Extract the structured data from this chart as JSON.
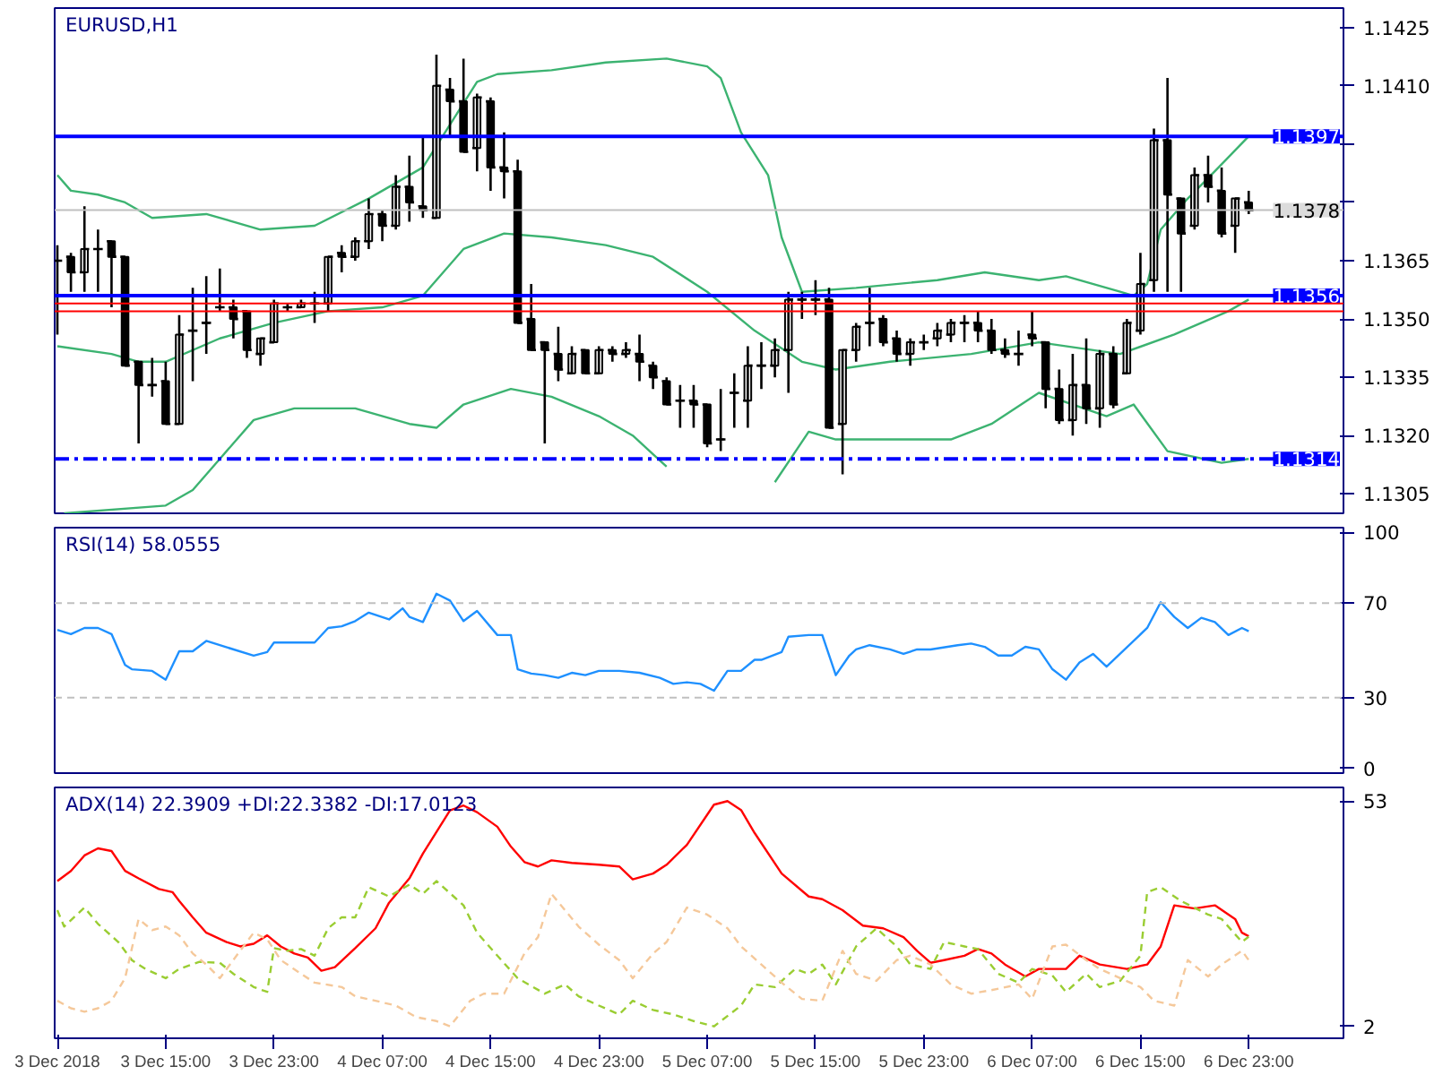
{
  "chart_data": [
    {
      "type": "candlestick",
      "title": "EURUSD,H1",
      "tick_labels": "y",
      "xlim": [
        "2018-12-03T06:48",
        "2018-12-07T06:00"
      ],
      "ylim": [
        1.13,
        1.143
      ],
      "yticks": [
        1.1305,
        {
          "value": 1.132,
          "label": "1.1320"
        },
        1.1335,
        {
          "value": 1.135,
          "label": "1.1350"
        },
        1.1365,
        {
          "value": 1.138,
          "label": null
        },
        {
          "value": 1.1395,
          "label": null
        },
        {
          "value": 1.141,
          "label": "1.1410"
        },
        1.1425
      ],
      "x": [
        "2018-12-03T07:00",
        "2018-12-03T08:00",
        "2018-12-03T09:00",
        "2018-12-03T10:00",
        "2018-12-03T11:00",
        "2018-12-03T12:00",
        "2018-12-03T13:00",
        "2018-12-03T14:00",
        "2018-12-03T15:00",
        "2018-12-03T16:00",
        "2018-12-03T17:00",
        "2018-12-03T18:00",
        "2018-12-03T19:00",
        "2018-12-03T20:00",
        "2018-12-03T21:00",
        "2018-12-03T22:00",
        "2018-12-03T23:00",
        "2018-12-04T00:00",
        "2018-12-04T01:00",
        "2018-12-04T02:00",
        "2018-12-04T03:00",
        "2018-12-04T04:00",
        "2018-12-04T05:00",
        "2018-12-04T06:00",
        "2018-12-04T07:00",
        "2018-12-04T08:00",
        "2018-12-04T09:00",
        "2018-12-04T10:00",
        "2018-12-04T11:00",
        "2018-12-04T12:00",
        "2018-12-04T13:00",
        "2018-12-04T14:00",
        "2018-12-04T15:00",
        "2018-12-04T16:00",
        "2018-12-04T17:00",
        "2018-12-04T18:00",
        "2018-12-04T19:00",
        "2018-12-04T20:00",
        "2018-12-04T21:00",
        "2018-12-04T22:00",
        "2018-12-04T23:00",
        "2018-12-05T00:00",
        "2018-12-05T01:00",
        "2018-12-05T02:00",
        "2018-12-05T03:00",
        "2018-12-05T04:00",
        "2018-12-05T05:00",
        "2018-12-05T06:00",
        "2018-12-05T07:00",
        "2018-12-05T08:00",
        "2018-12-05T09:00",
        "2018-12-05T10:00",
        "2018-12-05T11:00",
        "2018-12-05T12:00",
        "2018-12-05T13:00",
        "2018-12-05T14:00",
        "2018-12-05T15:00",
        "2018-12-05T16:00",
        "2018-12-05T17:00",
        "2018-12-05T18:00",
        "2018-12-05T19:00",
        "2018-12-05T20:00",
        "2018-12-05T21:00",
        "2018-12-05T22:00",
        "2018-12-05T23:00",
        "2018-12-06T00:00",
        "2018-12-06T01:00",
        "2018-12-06T02:00",
        "2018-12-06T03:00",
        "2018-12-06T04:00",
        "2018-12-06T05:00",
        "2018-12-06T06:00",
        "2018-12-06T07:00",
        "2018-12-06T08:00",
        "2018-12-06T09:00",
        "2018-12-06T10:00",
        "2018-12-06T11:00",
        "2018-12-06T12:00",
        "2018-12-06T13:00",
        "2018-12-06T14:00",
        "2018-12-06T15:00",
        "2018-12-06T16:00",
        "2018-12-06T17:00",
        "2018-12-06T18:00",
        "2018-12-06T19:00",
        "2018-12-06T20:00",
        "2018-12-06T21:00",
        "2018-12-06T22:00",
        "2018-12-06T23:00"
      ],
      "ohlc": [
        [
          1.1365,
          1.1369,
          1.1346,
          1.1365
        ],
        [
          1.1366,
          1.1367,
          1.1357,
          1.1362
        ],
        [
          1.1362,
          1.1379,
          1.1357,
          1.1368
        ],
        [
          1.1368,
          1.1373,
          1.1357,
          1.1368
        ],
        [
          1.137,
          1.137,
          1.1353,
          1.1366
        ],
        [
          1.1366,
          1.1366,
          1.1338,
          1.1338
        ],
        [
          1.1339,
          1.1339,
          1.1318,
          1.1333
        ],
        [
          1.1333,
          1.134,
          1.133,
          1.1333
        ],
        [
          1.1334,
          1.1339,
          1.1323,
          1.1323
        ],
        [
          1.1323,
          1.1351,
          1.1323,
          1.1346
        ],
        [
          1.1347,
          1.1358,
          1.1334,
          1.1347
        ],
        [
          1.1349,
          1.1361,
          1.1341,
          1.1349
        ],
        [
          1.1353,
          1.1363,
          1.1352,
          1.1353
        ],
        [
          1.1353,
          1.1355,
          1.1345,
          1.135
        ],
        [
          1.1352,
          1.1352,
          1.134,
          1.1342
        ],
        [
          1.1341,
          1.1345,
          1.1338,
          1.1345
        ],
        [
          1.1344,
          1.1355,
          1.1344,
          1.1354
        ],
        [
          1.1353,
          1.1354,
          1.1352,
          1.1353
        ],
        [
          1.1353,
          1.1355,
          1.1353,
          1.1354
        ],
        [
          1.1354,
          1.1357,
          1.1349,
          1.1354
        ],
        [
          1.1354,
          1.1366,
          1.1352,
          1.1366
        ],
        [
          1.1367,
          1.1369,
          1.1362,
          1.1366
        ],
        [
          1.1366,
          1.1371,
          1.1365,
          1.137
        ],
        [
          1.137,
          1.1381,
          1.1368,
          1.1377
        ],
        [
          1.1377,
          1.1378,
          1.137,
          1.1374
        ],
        [
          1.1374,
          1.1387,
          1.1373,
          1.1384
        ],
        [
          1.1384,
          1.1392,
          1.1375,
          1.138
        ],
        [
          1.1379,
          1.1397,
          1.1376,
          1.1378
        ],
        [
          1.1376,
          1.1418,
          1.1376,
          1.141
        ],
        [
          1.1409,
          1.1412,
          1.1397,
          1.1406
        ],
        [
          1.1406,
          1.1417,
          1.1393,
          1.1393
        ],
        [
          1.1394,
          1.1408,
          1.1388,
          1.1407
        ],
        [
          1.1406,
          1.1407,
          1.1383,
          1.1389
        ],
        [
          1.1389,
          1.1398,
          1.1381,
          1.1388
        ],
        [
          1.1388,
          1.1391,
          1.1349,
          1.1349
        ],
        [
          1.135,
          1.1359,
          1.1342,
          1.1342
        ],
        [
          1.1344,
          1.1344,
          1.1318,
          1.1342
        ],
        [
          1.1341,
          1.1348,
          1.1334,
          1.1337
        ],
        [
          1.1336,
          1.1343,
          1.1336,
          1.1341
        ],
        [
          1.1342,
          1.1342,
          1.1336,
          1.1336
        ],
        [
          1.1336,
          1.1343,
          1.1336,
          1.1342
        ],
        [
          1.1342,
          1.1343,
          1.1339,
          1.1341
        ],
        [
          1.1341,
          1.1344,
          1.134,
          1.1342
        ],
        [
          1.1341,
          1.1346,
          1.1334,
          1.1339
        ],
        [
          1.1338,
          1.1339,
          1.1332,
          1.1335
        ],
        [
          1.1334,
          1.1335,
          1.1328,
          1.1328
        ],
        [
          1.1329,
          1.1333,
          1.1322,
          1.1329
        ],
        [
          1.1329,
          1.1333,
          1.1322,
          1.1328
        ],
        [
          1.1328,
          1.1328,
          1.1317,
          1.1318
        ],
        [
          1.1319,
          1.1332,
          1.1316,
          1.1319
        ],
        [
          1.1331,
          1.1336,
          1.1322,
          1.1331
        ],
        [
          1.1329,
          1.1343,
          1.1322,
          1.1338
        ],
        [
          1.1338,
          1.1344,
          1.1332,
          1.1338
        ],
        [
          1.1338,
          1.1345,
          1.1335,
          1.1342
        ],
        [
          1.1342,
          1.1357,
          1.1331,
          1.1355
        ],
        [
          1.1355,
          1.1357,
          1.135,
          1.1355
        ],
        [
          1.1355,
          1.136,
          1.1351,
          1.1355
        ],
        [
          1.1355,
          1.1358,
          1.1322,
          1.1322
        ],
        [
          1.1323,
          1.1342,
          1.131,
          1.1342
        ],
        [
          1.1342,
          1.1349,
          1.1339,
          1.1348
        ],
        [
          1.1349,
          1.1358,
          1.1343,
          1.1349
        ],
        [
          1.135,
          1.1351,
          1.1343,
          1.1344
        ],
        [
          1.1345,
          1.1347,
          1.1339,
          1.1341
        ],
        [
          1.1341,
          1.1345,
          1.1338,
          1.1344
        ],
        [
          1.1344,
          1.1346,
          1.1342,
          1.1344
        ],
        [
          1.1345,
          1.1349,
          1.1343,
          1.1347
        ],
        [
          1.1346,
          1.135,
          1.1344,
          1.1349
        ],
        [
          1.1349,
          1.1351,
          1.1344,
          1.1349
        ],
        [
          1.1349,
          1.1352,
          1.1344,
          1.1347
        ],
        [
          1.1347,
          1.135,
          1.1341,
          1.1342
        ],
        [
          1.1342,
          1.1345,
          1.134,
          1.1341
        ],
        [
          1.1341,
          1.1347,
          1.1338,
          1.1341
        ],
        [
          1.1346,
          1.1352,
          1.1343,
          1.1345
        ],
        [
          1.1344,
          1.1344,
          1.1327,
          1.1332
        ],
        [
          1.1332,
          1.1337,
          1.1323,
          1.1324
        ],
        [
          1.1324,
          1.1341,
          1.132,
          1.1333
        ],
        [
          1.1333,
          1.1345,
          1.1323,
          1.1327
        ],
        [
          1.1327,
          1.1342,
          1.1322,
          1.1341
        ],
        [
          1.1341,
          1.1343,
          1.1327,
          1.1328
        ],
        [
          1.1336,
          1.135,
          1.1336,
          1.1349
        ],
        [
          1.1347,
          1.1367,
          1.1346,
          1.1359
        ],
        [
          1.136,
          1.1399,
          1.1357,
          1.1396
        ],
        [
          1.1396,
          1.1412,
          1.1357,
          1.1382
        ],
        [
          1.1381,
          1.1381,
          1.1357,
          1.1372
        ],
        [
          1.1374,
          1.1389,
          1.1373,
          1.1387
        ],
        [
          1.1387,
          1.1392,
          1.138,
          1.1384
        ],
        [
          1.1383,
          1.1389,
          1.1371,
          1.1372
        ],
        [
          1.1374,
          1.1381,
          1.1367,
          1.1381
        ],
        [
          1.138,
          1.1383,
          1.1377,
          1.1378
        ]
      ],
      "series": [
        {
          "type": "line",
          "color": "#3cb371",
          "x": [
            "2018-12-03T07:00",
            "2018-12-03T08:00",
            "2018-12-03T10:00",
            "2018-12-03T12:00",
            "2018-12-03T14:00",
            "2018-12-03T18:00",
            "2018-12-03T22:00",
            "2018-12-04T02:00",
            "2018-12-04T06:00",
            "2018-12-04T10:00",
            "2018-12-04T12:00",
            "2018-12-04T14:00",
            "2018-12-04T15:30",
            "2018-12-04T19:30",
            "2018-12-04T23:30",
            "2018-12-05T04:00",
            "2018-12-05T07:00",
            "2018-12-05T08:00",
            "2018-12-05T09:30",
            "2018-12-05T11:30",
            "2018-12-05T12:30",
            "2018-12-05T14:00",
            "2018-12-05T18:00",
            "2018-12-06T00:00",
            "2018-12-06T03:30",
            "2018-12-06T07:30",
            "2018-12-06T09:30",
            "2018-12-06T13:30",
            "2018-12-06T14:30",
            "2018-12-06T15:30",
            "2018-12-06T16:30",
            "2018-12-06T18:30",
            "2018-12-06T20:30",
            "2018-12-06T23:00"
          ],
          "values": [
            1.1387,
            1.1383,
            1.1382,
            1.138,
            1.1376,
            1.1377,
            1.1373,
            1.1374,
            1.1381,
            1.1389,
            1.14,
            1.1411,
            1.1413,
            1.1414,
            1.1416,
            1.1417,
            1.1415,
            1.1412,
            1.1398,
            1.1387,
            1.1371,
            1.1357,
            1.1358,
            1.136,
            1.1362,
            1.136,
            1.1361,
            1.1357,
            1.1356,
            1.1359,
            1.1373,
            1.1381,
            1.1388,
            1.1397
          ]
        },
        {
          "type": "line",
          "color": "#3cb371",
          "x": [
            "2018-12-03T07:00",
            "2018-12-03T11:00",
            "2018-12-03T13:00",
            "2018-12-03T15:00",
            "2018-12-03T19:00",
            "2018-12-03T23:00",
            "2018-12-04T03:00",
            "2018-12-04T07:00",
            "2018-12-04T10:00",
            "2018-12-04T13:00",
            "2018-12-04T16:00",
            "2018-12-04T19:30",
            "2018-12-04T23:30",
            "2018-12-05T03:00",
            "2018-12-05T07:00",
            "2018-12-05T10:30",
            "2018-12-05T14:00",
            "2018-12-05T16:30",
            "2018-12-05T20:30",
            "2018-12-06T02:30",
            "2018-12-06T07:30",
            "2018-12-06T13:30",
            "2018-12-06T17:30",
            "2018-12-06T21:30",
            "2018-12-06T23:00"
          ],
          "values": [
            1.1343,
            1.1341,
            1.1339,
            1.1339,
            1.1345,
            1.1349,
            1.1352,
            1.1353,
            1.1356,
            1.1368,
            1.1372,
            1.1371,
            1.1369,
            1.1366,
            1.1357,
            1.1347,
            1.1339,
            1.1337,
            1.1339,
            1.1341,
            1.1344,
            1.1341,
            1.1346,
            1.1352,
            1.1355
          ]
        },
        {
          "type": "line",
          "color": "#3cb371",
          "x": [
            "2018-12-03T07:30",
            "2018-12-03T15:00",
            "2018-12-03T17:00",
            "2018-12-03T19:00",
            "2018-12-03T21:30",
            "2018-12-04T00:30",
            "2018-12-04T05:00",
            "2018-12-04T09:00",
            "2018-12-04T11:00",
            "2018-12-04T13:00",
            "2018-12-04T16:30",
            "2018-12-04T19:30",
            "2018-12-04T23:00",
            "2018-12-05T01:30",
            "2018-12-05T04:00",
            "2018-12-05T07:00",
            "2018-12-05T12:00",
            "2018-12-05T14:30",
            "2018-12-05T16:30",
            "2018-12-06T01:00",
            "2018-12-06T04:00",
            "2018-12-06T07:30",
            "2018-12-06T12:30",
            "2018-12-06T14:30",
            "2018-12-06T17:00",
            "2018-12-06T21:00",
            "2018-12-06T23:00"
          ],
          "values": [
            1.13,
            1.1302,
            1.1306,
            1.1314,
            1.1324,
            1.1327,
            1.1327,
            1.1323,
            1.1322,
            1.1328,
            1.1332,
            1.133,
            1.1325,
            1.132,
            1.1312,
            null,
            1.1308,
            1.1321,
            1.1319,
            1.1319,
            1.1323,
            1.1331,
            1.1325,
            1.1328,
            1.1316,
            1.1313,
            1.1314
          ]
        }
      ],
      "ref_lines": [
        {
          "axis": "y",
          "value": 1.1397,
          "label": "1.1397",
          "color": "#0000ff",
          "line_style": "solid"
        },
        {
          "axis": "y",
          "value": 1.1378,
          "label": "1.1378",
          "color": "#c0c0c0",
          "line_style": "solid"
        },
        {
          "axis": "y",
          "value": 1.1356,
          "label": "1.1356",
          "color": "#0000ff",
          "line_style": "solid"
        },
        {
          "axis": "y",
          "value": 1.1354,
          "color": "#ff0000",
          "line_style": "solid"
        },
        {
          "axis": "y",
          "value": 1.1352,
          "color": "#ff0000",
          "line_style": "solid"
        },
        {
          "axis": "y",
          "value": 1.1314,
          "label": "1.1314",
          "color": "#0000ff",
          "line_style": "dashdot"
        }
      ]
    },
    {
      "type": "line",
      "title": "RSI(14) 58.0555",
      "tick_labels": "y",
      "xlim": [
        "2018-12-03T06:48",
        "2018-12-07T06:00"
      ],
      "ylim": [
        -2,
        102
      ],
      "yticks": [
        0,
        30,
        70,
        100
      ],
      "ref_lines": [
        {
          "axis": "y",
          "value": 70,
          "color": "#c0c0c0",
          "line_style": "dashed"
        },
        {
          "axis": "y",
          "value": 30,
          "color": "#c0c0c0",
          "line_style": "dashed"
        }
      ],
      "series": [
        {
          "color": "#1e90ff",
          "x": [
            "2018-12-03T07:00",
            "2018-12-03T08:00",
            "2018-12-03T09:00",
            "2018-12-03T10:00",
            "2018-12-03T11:00",
            "2018-12-03T12:00",
            "2018-12-03T12:30",
            "2018-12-03T14:00",
            "2018-12-03T15:00",
            "2018-12-03T16:00",
            "2018-12-03T17:00",
            "2018-12-03T18:00",
            "2018-12-03T19:00",
            "2018-12-03T21:30",
            "2018-12-03T22:30",
            "2018-12-03T23:00",
            "2018-12-04T02:00",
            "2018-12-04T03:00",
            "2018-12-04T04:00",
            "2018-12-04T05:00",
            "2018-12-04T06:00",
            "2018-12-04T07:30",
            "2018-12-04T08:30",
            "2018-12-04T09:00",
            "2018-12-04T10:00",
            "2018-12-04T11:00",
            "2018-12-04T12:00",
            "2018-12-04T13:00",
            "2018-12-04T14:00",
            "2018-12-04T15:30",
            "2018-12-04T16:30",
            "2018-12-04T17:00",
            "2018-12-04T18:00",
            "2018-12-04T19:00",
            "2018-12-04T20:00",
            "2018-12-04T21:00",
            "2018-12-04T22:00",
            "2018-12-04T23:00",
            "2018-12-05T00:30",
            "2018-12-05T02:00",
            "2018-12-05T03:30",
            "2018-12-05T04:30",
            "2018-12-05T05:30",
            "2018-12-05T06:30",
            "2018-12-05T07:30",
            "2018-12-05T08:30",
            "2018-12-05T09:30",
            "2018-12-05T10:30",
            "2018-12-05T11:00",
            "2018-12-05T12:30",
            "2018-12-05T13:00",
            "2018-12-05T14:30",
            "2018-12-05T15:30",
            "2018-12-05T16:30",
            "2018-12-05T17:30",
            "2018-12-05T18:00",
            "2018-12-05T19:00",
            "2018-12-05T20:30",
            "2018-12-05T21:30",
            "2018-12-05T22:30",
            "2018-12-05T23:30",
            "2018-12-06T01:30",
            "2018-12-06T02:30",
            "2018-12-06T03:30",
            "2018-12-06T04:30",
            "2018-12-06T05:30",
            "2018-12-06T06:30",
            "2018-12-06T07:30",
            "2018-12-06T08:30",
            "2018-12-06T09:30",
            "2018-12-06T10:30",
            "2018-12-06T11:30",
            "2018-12-06T12:30",
            "2018-12-06T15:30",
            "2018-12-06T16:30",
            "2018-12-06T17:30",
            "2018-12-06T18:30",
            "2018-12-06T19:30",
            "2018-12-06T20:30",
            "2018-12-06T21:30",
            "2018-12-06T22:30",
            "2018-12-06T23:00"
          ],
          "values": [
            58.7,
            56.9,
            59.5,
            59.5,
            56.9,
            43.8,
            42,
            41.3,
            37.6,
            49.6,
            49.6,
            54,
            52.2,
            47.8,
            49.3,
            53.3,
            53.3,
            59.5,
            60.2,
            62.4,
            66,
            63.1,
            67.8,
            64.2,
            62,
            74,
            71.1,
            62.4,
            66.7,
            56.5,
            56.5,
            42,
            40.2,
            39.5,
            38.4,
            40.5,
            39.5,
            41.3,
            41.3,
            40.5,
            38.4,
            35.8,
            36.5,
            35.8,
            32.9,
            41.3,
            41.3,
            46,
            46,
            49.3,
            55.8,
            56.5,
            56.5,
            39.5,
            47.8,
            50.4,
            52.2,
            50.4,
            48.5,
            50.4,
            50.4,
            52.2,
            52.9,
            51.5,
            47.8,
            47.8,
            51.5,
            50.4,
            42,
            37.6,
            44.9,
            48.5,
            43.1,
            59.5,
            70.4,
            64.2,
            59.5,
            63.8,
            62,
            56.5,
            59.5,
            58.1
          ]
        }
      ]
    },
    {
      "type": "line",
      "title": "ADX(14) 22.3909 +DI:22.3382 -DI:17.0123",
      "xlim": [
        "2018-12-03T06:48",
        "2018-12-07T06:00"
      ],
      "ylim": [
        -0.7,
        56.1
      ],
      "yticks": [
        2,
        53
      ],
      "xticks": [
        {
          "value": "2018-12-03T07:00",
          "label": "3 Dec 2018"
        },
        {
          "value": "2018-12-03T15:00",
          "label": "3 Dec 15:00"
        },
        {
          "value": "2018-12-03T23:00",
          "label": "3 Dec 23:00"
        },
        {
          "value": "2018-12-04T07:00",
          "label": "4 Dec 07:00"
        },
        {
          "value": "2018-12-04T15:00",
          "label": "4 Dec 15:00"
        },
        {
          "value": "2018-12-04T23:00",
          "label": "4 Dec 23:00"
        },
        {
          "value": "2018-12-05T07:00",
          "label": "5 Dec 07:00"
        },
        {
          "value": "2018-12-05T15:00",
          "label": "5 Dec 15:00"
        },
        {
          "value": "2018-12-05T23:00",
          "label": "5 Dec 23:00"
        },
        {
          "value": "2018-12-06T07:00",
          "label": "6 Dec 07:00"
        },
        {
          "value": "2018-12-06T15:00",
          "label": "6 Dec 15:00"
        },
        {
          "value": "2018-12-06T23:00",
          "label": "6 Dec 23:00"
        }
      ],
      "series": [
        {
          "color": "#ff0000",
          "line_style": "solid",
          "x": [
            "2018-12-03T07:00",
            "2018-12-03T08:00",
            "2018-12-03T09:00",
            "2018-12-03T10:00",
            "2018-12-03T11:00",
            "2018-12-03T12:00",
            "2018-12-03T13:00",
            "2018-12-03T14:30",
            "2018-12-03T15:30",
            "2018-12-03T16:00",
            "2018-12-03T17:00",
            "2018-12-03T18:00",
            "2018-12-03T19:30",
            "2018-12-03T20:30",
            "2018-12-03T21:30",
            "2018-12-03T22:30",
            "2018-12-03T23:30",
            "2018-12-04T00:30",
            "2018-12-04T01:30",
            "2018-12-04T02:30",
            "2018-12-04T03:30",
            "2018-12-04T05:00",
            "2018-12-04T06:30",
            "2018-12-04T07:30",
            "2018-12-04T09:00",
            "2018-12-04T10:00",
            "2018-12-04T12:00",
            "2018-12-04T13:00",
            "2018-12-04T14:00",
            "2018-12-04T15:30",
            "2018-12-04T16:30",
            "2018-12-04T17:30",
            "2018-12-04T18:30",
            "2018-12-04T19:30",
            "2018-12-04T21:00",
            "2018-12-04T23:00",
            "2018-12-05T00:30",
            "2018-12-05T01:30",
            "2018-12-05T03:00",
            "2018-12-05T04:00",
            "2018-12-05T05:30",
            "2018-12-05T07:30",
            "2018-12-05T08:30",
            "2018-12-05T09:30",
            "2018-12-05T10:30",
            "2018-12-05T12:30",
            "2018-12-05T14:30",
            "2018-12-05T15:30",
            "2018-12-05T17:00",
            "2018-12-05T18:30",
            "2018-12-05T20:00",
            "2018-12-05T21:30",
            "2018-12-05T22:30",
            "2018-12-05T23:30",
            "2018-12-06T00:30",
            "2018-12-06T02:00",
            "2018-12-06T03:00",
            "2018-12-06T04:00",
            "2018-12-06T05:00",
            "2018-12-06T06:30",
            "2018-12-06T07:30",
            "2018-12-06T09:30",
            "2018-12-06T10:30",
            "2018-12-06T12:00",
            "2018-12-06T14:00",
            "2018-12-06T15:30",
            "2018-12-06T16:30",
            "2018-12-06T17:30",
            "2018-12-06T19:00",
            "2018-12-06T20:30",
            "2018-12-06T22:00",
            "2018-12-06T22:30",
            "2018-12-06T23:00"
          ],
          "values": [
            34.9,
            37.2,
            40.7,
            42.3,
            41.7,
            37.2,
            35.5,
            33.1,
            32.4,
            30.4,
            26.7,
            23.2,
            21.1,
            20.1,
            20.7,
            22.6,
            20.1,
            18.5,
            17.6,
            14.6,
            15.4,
            19.7,
            24.2,
            30,
            35.5,
            41.1,
            50.9,
            52,
            50.5,
            47.2,
            42.7,
            39.2,
            38.2,
            39.6,
            39,
            38.6,
            38.2,
            35.3,
            36.6,
            38.6,
            43.1,
            52.2,
            53,
            51,
            45.8,
            36.6,
            31.4,
            30.8,
            28.3,
            24.8,
            24.2,
            22.2,
            19.1,
            16.4,
            17,
            18,
            19.5,
            18.5,
            16,
            13.3,
            15,
            15,
            18,
            16,
            15,
            16,
            20.1,
            29.4,
            28.7,
            29.4,
            26.3,
            23.2,
            22.4
          ]
        },
        {
          "color": "#9acd32",
          "line_style": "dashed",
          "x": [
            "2018-12-03T07:00",
            "2018-12-03T07:30",
            "2018-12-03T09:00",
            "2018-12-03T10:00",
            "2018-12-03T11:30",
            "2018-12-03T12:30",
            "2018-12-03T13:30",
            "2018-12-03T15:00",
            "2018-12-03T16:00",
            "2018-12-03T17:30",
            "2018-12-03T19:00",
            "2018-12-03T20:00",
            "2018-12-03T21:30",
            "2018-12-03T22:30",
            "2018-12-03T23:00",
            "2018-12-04T00:00",
            "2018-12-04T01:00",
            "2018-12-04T02:00",
            "2018-12-04T03:00",
            "2018-12-04T04:00",
            "2018-12-04T05:00",
            "2018-12-04T06:00",
            "2018-12-04T07:30",
            "2018-12-04T09:00",
            "2018-12-04T10:00",
            "2018-12-04T11:00",
            "2018-12-04T13:00",
            "2018-12-04T14:00",
            "2018-12-04T15:30",
            "2018-12-04T17:00",
            "2018-12-04T19:00",
            "2018-12-04T20:30",
            "2018-12-04T21:30",
            "2018-12-04T23:00",
            "2018-12-05T00:30",
            "2018-12-05T01:30",
            "2018-12-05T03:00",
            "2018-12-05T04:30",
            "2018-12-05T06:00",
            "2018-12-05T07:30",
            "2018-12-05T09:30",
            "2018-12-05T10:30",
            "2018-12-05T12:00",
            "2018-12-05T13:30",
            "2018-12-05T14:30",
            "2018-12-05T15:30",
            "2018-12-05T16:30",
            "2018-12-05T18:00",
            "2018-12-05T19:30",
            "2018-12-05T21:00",
            "2018-12-05T22:00",
            "2018-12-05T23:30",
            "2018-12-06T00:30",
            "2018-12-06T02:00",
            "2018-12-06T03:00",
            "2018-12-06T04:30",
            "2018-12-06T06:00",
            "2018-12-06T07:00",
            "2018-12-06T08:30",
            "2018-12-06T09:30",
            "2018-12-06T11:00",
            "2018-12-06T12:00",
            "2018-12-06T13:30",
            "2018-12-06T15:00",
            "2018-12-06T15:30",
            "2018-12-06T16:30",
            "2018-12-06T18:00",
            "2018-12-06T20:00",
            "2018-12-06T21:00",
            "2018-12-06T22:30",
            "2018-12-06T23:00"
          ],
          "values": [
            28.3,
            24.6,
            28.9,
            25.2,
            21.1,
            17,
            15,
            12.9,
            15,
            16.6,
            16.4,
            13.9,
            10.9,
            9.8,
            19.7,
            19.1,
            19.5,
            18,
            24.2,
            26.7,
            26.7,
            33.5,
            31.4,
            34.1,
            32,
            34.9,
            29.4,
            23.2,
            18,
            12.9,
            9.4,
            11.5,
            8.8,
            6.7,
            4.7,
            7.8,
            5.7,
            4.7,
            3.2,
            2,
            6.7,
            11.5,
            10.9,
            15,
            13.9,
            16,
            11.5,
            20.1,
            24.2,
            20.1,
            16,
            15,
            21.1,
            20.1,
            19.5,
            13.9,
            11.9,
            15,
            13.5,
            9.8,
            13.9,
            10.9,
            12.3,
            18,
            32.4,
            33.5,
            30.4,
            27.3,
            26.3,
            21.1,
            22.3
          ]
        },
        {
          "color": "#f5c89a",
          "line_style": "dashed",
          "x": [
            "2018-12-03T07:00",
            "2018-12-03T08:00",
            "2018-12-03T09:00",
            "2018-12-03T10:00",
            "2018-12-03T11:00",
            "2018-12-03T12:00",
            "2018-12-03T13:00",
            "2018-12-03T14:00",
            "2018-12-03T15:00",
            "2018-12-03T16:00",
            "2018-12-03T17:00",
            "2018-12-03T18:00",
            "2018-12-03T19:00",
            "2018-12-03T20:30",
            "2018-12-03T21:30",
            "2018-12-03T22:30",
            "2018-12-03T23:30",
            "2018-12-04T01:00",
            "2018-12-04T02:00",
            "2018-12-04T04:00",
            "2018-12-04T05:00",
            "2018-12-04T06:30",
            "2018-12-04T08:00",
            "2018-12-04T09:30",
            "2018-12-04T11:00",
            "2018-12-04T12:00",
            "2018-12-04T13:30",
            "2018-12-04T14:30",
            "2018-12-04T16:00",
            "2018-12-04T17:30",
            "2018-12-04T18:30",
            "2018-12-04T19:30",
            "2018-12-04T20:30",
            "2018-12-04T21:30",
            "2018-12-04T23:00",
            "2018-12-05T00:30",
            "2018-12-05T01:30",
            "2018-12-05T03:00",
            "2018-12-05T04:00",
            "2018-12-05T05:30",
            "2018-12-05T07:00",
            "2018-12-05T08:30",
            "2018-12-05T09:30",
            "2018-12-05T11:00",
            "2018-12-05T12:30",
            "2018-12-05T14:00",
            "2018-12-05T15:30",
            "2018-12-05T17:00",
            "2018-12-05T18:00",
            "2018-12-05T19:30",
            "2018-12-05T21:00",
            "2018-12-05T22:00",
            "2018-12-05T23:30",
            "2018-12-06T01:00",
            "2018-12-06T02:30",
            "2018-12-06T04:00",
            "2018-12-06T06:00",
            "2018-12-06T07:00",
            "2018-12-06T08:30",
            "2018-12-06T09:30",
            "2018-12-06T11:00",
            "2018-12-06T12:00",
            "2018-12-06T13:30",
            "2018-12-06T15:00",
            "2018-12-06T16:00",
            "2018-12-06T17:30",
            "2018-12-06T18:30",
            "2018-12-06T20:00",
            "2018-12-06T21:00",
            "2018-12-06T22:30",
            "2018-12-06T23:00"
          ],
          "values": [
            7.8,
            6.1,
            5.3,
            6.1,
            7.8,
            12.9,
            26.3,
            23.8,
            24.6,
            22.6,
            18.5,
            16,
            12.9,
            19.1,
            23.2,
            21.7,
            17,
            13.9,
            11.9,
            10.9,
            8.8,
            7.8,
            6.7,
            4.1,
            3.2,
            2,
            7.8,
            9.4,
            9.4,
            18.5,
            22.2,
            32,
            28.3,
            24.6,
            20.5,
            17,
            12.9,
            18.5,
            21.1,
            28.9,
            27.3,
            24.2,
            20.1,
            16,
            11.9,
            8.2,
            7.8,
            19.1,
            13.9,
            12.3,
            17,
            18,
            16,
            11.5,
            9.4,
            10.2,
            11.5,
            8.2,
            20.1,
            20.5,
            17,
            15,
            12.9,
            10.9,
            7.8,
            6.7,
            17,
            13.3,
            16,
            19.1,
            17
          ]
        }
      ]
    }
  ]
}
